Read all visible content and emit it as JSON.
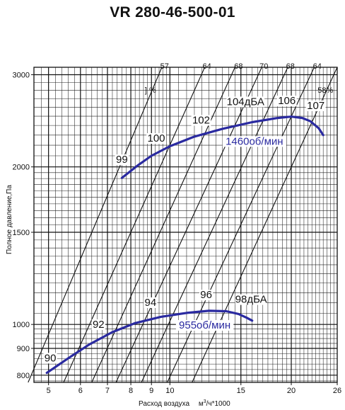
{
  "title": "VR 280-46-500-01",
  "chart_data": {
    "type": "line",
    "title": "VR 280-46-500-01",
    "xlabel": "Расход воздуха",
    "xunit_main": "м",
    "xunit_sup": "3",
    "xunit_rest": "/ч*1000",
    "ylabel": "Полное давление,Па",
    "xscale": "log",
    "yscale": "log",
    "xlim": [
      4.6,
      26
    ],
    "ylim": [
      775,
      3100
    ],
    "x_ticks": [
      5,
      6,
      7,
      8,
      9,
      10,
      15,
      20,
      26
    ],
    "y_ticks": [
      800,
      900,
      1000,
      1500,
      2000,
      3000
    ],
    "grid": true,
    "series": [
      {
        "name": "1460об/мин",
        "color": "#2a2aa0",
        "x": [
          7.6,
          8.3,
          9.0,
          10.0,
          11.5,
          13.5,
          16.0,
          18.5,
          20.0,
          21.3,
          22.3,
          23.4,
          24.0
        ],
        "y": [
          1905,
          2010,
          2100,
          2190,
          2285,
          2365,
          2435,
          2480,
          2495,
          2480,
          2445,
          2370,
          2300
        ]
      },
      {
        "name": "955об/мин",
        "color": "#2a2aa0",
        "x": [
          4.95,
          5.6,
          6.3,
          7.2,
          8.2,
          9.5,
          11.0,
          12.5,
          13.8,
          14.8,
          15.5,
          16.0
        ],
        "y": [
          808,
          862,
          915,
          967,
          1006,
          1034,
          1052,
          1062,
          1060,
          1047,
          1030,
          1017
        ]
      }
    ],
    "efficiency_labels": [
      {
        "text": "] %",
        "x": 8.95
      },
      {
        "text": "57",
        "x": 9.7
      },
      {
        "text": "64",
        "x": 12.35
      },
      {
        "text": "68",
        "x": 14.8
      },
      {
        "text": "70",
        "x": 17.1
      },
      {
        "text": "68",
        "x": 19.9
      },
      {
        "text": "64",
        "x": 23.2
      },
      {
        "text": "58%",
        "x": 24.3
      }
    ],
    "system_lines": [
      {
        "x_top": 9.55,
        "x_bottom": 4.45
      },
      {
        "x_top": 12.2,
        "x_bottom": 5.45
      },
      {
        "x_top": 14.5,
        "x_bottom": 6.4
      },
      {
        "x_top": 16.9,
        "x_bottom": 7.35
      },
      {
        "x_top": 19.6,
        "x_bottom": 8.5
      },
      {
        "x_top": 22.8,
        "x_bottom": 9.85
      },
      {
        "x_top": 26.0,
        "x_bottom": 11.35
      }
    ],
    "noise_labels": [
      {
        "text": "90",
        "x": 5.05,
        "y": 850
      },
      {
        "text": "92",
        "x": 6.65,
        "y": 985
      },
      {
        "text": "94",
        "x": 8.95,
        "y": 1085
      },
      {
        "text": "96",
        "x": 12.3,
        "y": 1122
      },
      {
        "text": "98дБА",
        "x": 15.9,
        "y": 1100
      },
      {
        "text": "99",
        "x": 7.6,
        "y": 2035
      },
      {
        "text": "100",
        "x": 9.25,
        "y": 2235
      },
      {
        "text": "102",
        "x": 11.95,
        "y": 2420
      },
      {
        "text": "104дБА",
        "x": 15.4,
        "y": 2625
      },
      {
        "text": "106",
        "x": 19.5,
        "y": 2635
      },
      {
        "text": "107",
        "x": 23.0,
        "y": 2580
      }
    ],
    "speed_labels": [
      {
        "text": "1460об/мин",
        "x": 16.2,
        "y": 2205
      },
      {
        "text": "955об/мин",
        "x": 12.2,
        "y": 982
      }
    ]
  }
}
